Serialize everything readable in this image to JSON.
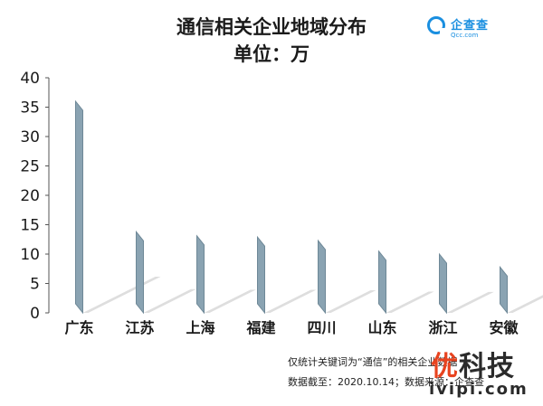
{
  "header": {
    "title": "通信相关企业地域分布",
    "subtitle": "单位：万"
  },
  "logo": {
    "name": "企查查",
    "domain": "Qcc.com"
  },
  "footnotes": {
    "line1": "仅统计关键词为“通信”的相关企业数据",
    "line2": "数据截至：2020.10.14；数据来源：企查查"
  },
  "watermark": {
    "text_accent": "优",
    "text_rest": "科技",
    "domain": "ivipi.com"
  },
  "colors": {
    "bar": "#8aa3b2",
    "bar_dark": "#6e8897",
    "shadow": "#d6d6d6",
    "axis": "#555555",
    "text": "#1a1a1a"
  },
  "chart_data": {
    "type": "bar",
    "categories": [
      "广东",
      "江苏",
      "上海",
      "福建",
      "四川",
      "山东",
      "浙江",
      "安徽"
    ],
    "values": [
      36,
      13.8,
      13.1,
      12.9,
      12.3,
      10.5,
      10.0,
      7.8
    ],
    "ylim": [
      0,
      40
    ],
    "yticks": [
      0,
      5,
      10,
      15,
      20,
      25,
      30,
      35,
      40
    ],
    "title": "通信相关企业地域分布",
    "ylabel": "",
    "xlabel": "",
    "grid": false,
    "legend": "none"
  }
}
